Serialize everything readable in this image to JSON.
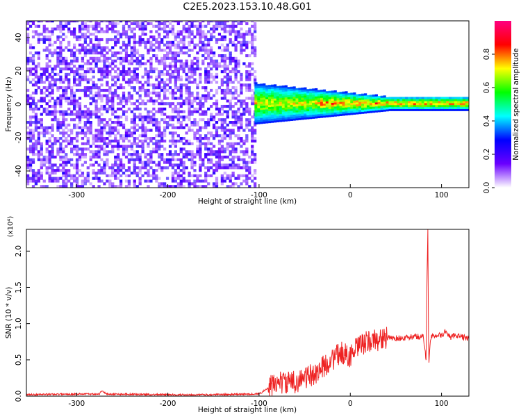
{
  "title": "C2E5.2023.153.10.48.G01",
  "chart_data": [
    {
      "type": "heatmap",
      "xlabel": "Height of straight line (km)",
      "ylabel": "Frequency (Hz)",
      "xlim": [
        -355,
        130
      ],
      "ylim": [
        -50,
        50
      ],
      "xticks": [
        -300,
        -200,
        -100,
        0,
        100
      ],
      "yticks": [
        -40,
        -20,
        0,
        20,
        40
      ],
      "colorbar": {
        "label": "Normalized spectral amplitude",
        "range": [
          0.0,
          1.0
        ],
        "ticks": [
          0.0,
          0.2,
          0.4,
          0.6,
          0.8
        ],
        "colormap": [
          "#ffffff",
          "#6a00ff",
          "#0000ff",
          "#00ffff",
          "#00ff00",
          "#ffff00",
          "#ff0000",
          "#ff0080"
        ]
      },
      "regions": [
        {
          "x_range": [
            -355,
            -105
          ],
          "pattern": "broadband noise across all frequencies",
          "amplitude": [
            0.05,
            0.25
          ]
        },
        {
          "x_range": [
            -105,
            130
          ],
          "pattern": "narrow band centered at 0 Hz",
          "center_hz": 0,
          "halfwidth_hz": [
            12,
            4
          ],
          "amplitude": [
            0.3,
            0.9
          ]
        }
      ]
    },
    {
      "type": "line",
      "xlabel": "Height of straight line (km)",
      "ylabel": "SNR (10 * v/v)",
      "y_multiplier": "(x10⁴)",
      "xlim": [
        -355,
        130
      ],
      "ylim": [
        0.0,
        2.3
      ],
      "xticks": [
        -300,
        -200,
        -100,
        0,
        100
      ],
      "yticks": [
        0.0,
        0.5,
        1.0,
        1.5,
        2.0
      ],
      "color": "#ee2222",
      "series": [
        {
          "x": [
            -355,
            -300,
            -275,
            -272,
            -268,
            -200,
            -150,
            -100,
            -85,
            -80,
            -70,
            -60,
            -50,
            -40,
            -30,
            -20,
            -10,
            0,
            10,
            20,
            30,
            40,
            50,
            60,
            70,
            75,
            80,
            83,
            84,
            85,
            86,
            88,
            90,
            95,
            100,
            105,
            110,
            115,
            120,
            130
          ],
          "y": [
            0.02,
            0.03,
            0.03,
            0.08,
            0.03,
            0.02,
            0.02,
            0.03,
            0.15,
            0.2,
            0.18,
            0.2,
            0.25,
            0.3,
            0.4,
            0.5,
            0.6,
            0.55,
            0.7,
            0.75,
            0.78,
            0.8,
            0.8,
            0.8,
            0.82,
            0.82,
            0.83,
            0.5,
            1.6,
            2.3,
            0.4,
            0.8,
            0.82,
            0.85,
            0.83,
            0.9,
            0.8,
            0.85,
            0.82,
            0.8
          ]
        }
      ]
    }
  ]
}
